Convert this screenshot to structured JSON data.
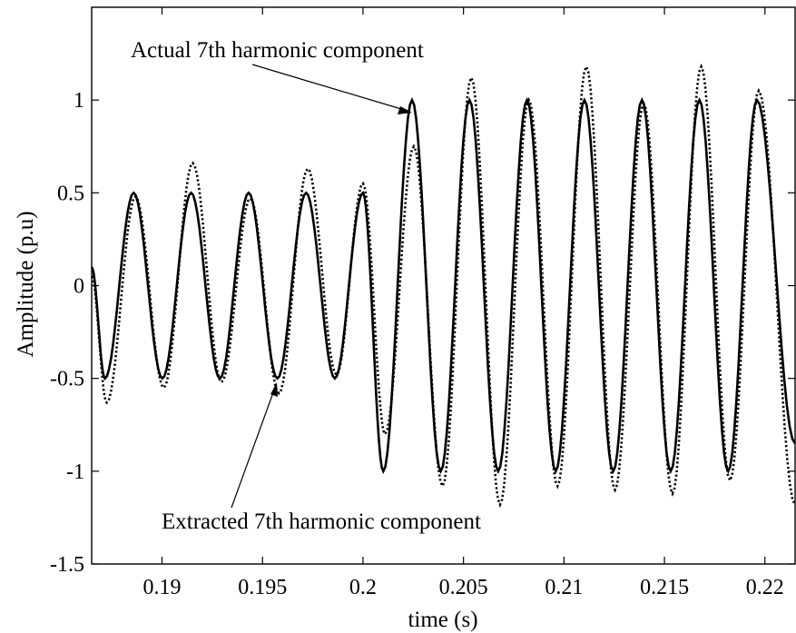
{
  "chart_data": {
    "type": "line",
    "title": "",
    "xlabel": "time (s)",
    "ylabel": "Amplitude (p.u)",
    "xlim": [
      0.1865,
      0.2215
    ],
    "ylim": [
      -1.5,
      1.5
    ],
    "grid": false,
    "x_tick_labels": [
      "0.19",
      "0.195",
      "0.2",
      "0.205",
      "0.21",
      "0.215",
      "0.22"
    ],
    "y_tick_labels": [
      "1",
      "0.5",
      "0",
      "-0.5",
      "-1",
      "-1.5"
    ],
    "series": [
      {
        "style": "solid",
        "x": [
          0.1865,
          0.18716,
          0.18859,
          0.19002,
          0.19145,
          0.19288,
          0.19431,
          0.19574,
          0.19717,
          0.1986,
          0.2,
          0.20101,
          0.20244,
          0.20387,
          0.2053,
          0.20673,
          0.20816,
          0.20959,
          0.21102,
          0.21245,
          0.21388,
          0.21531,
          0.21674,
          0.21817,
          0.2196,
          0.2215
        ],
        "y": [
          0.1,
          -0.5,
          0.5,
          -0.5,
          0.5,
          -0.5,
          0.5,
          -0.5,
          0.5,
          -0.5,
          0.5,
          -1.0,
          1.0,
          -1.0,
          1.0,
          -1.0,
          1.0,
          -1.0,
          1.0,
          -1.0,
          1.0,
          -1.0,
          1.0,
          -1.0,
          1.0,
          -0.85
        ]
      },
      {
        "style": "dotted",
        "x": [
          0.1865,
          0.18725,
          0.18868,
          0.19009,
          0.19153,
          0.19296,
          0.19439,
          0.19582,
          0.19725,
          0.19868,
          0.2,
          0.2011,
          0.20253,
          0.20396,
          0.20539,
          0.20682,
          0.20825,
          0.20968,
          0.21111,
          0.21254,
          0.21397,
          0.2154,
          0.21683,
          0.21826,
          0.21969,
          0.2215
        ],
        "y": [
          0.05,
          -0.63,
          0.48,
          -0.55,
          0.66,
          -0.52,
          0.47,
          -0.58,
          0.63,
          -0.48,
          0.55,
          -0.8,
          0.75,
          -1.08,
          1.12,
          -1.18,
          1.0,
          -1.08,
          1.18,
          -1.1,
          0.98,
          -1.12,
          1.18,
          -1.05,
          1.05,
          -1.18
        ]
      }
    ],
    "annotations": [
      {
        "text": "Actual 7th harmonic component"
      },
      {
        "text": "Extracted 7th harmonic component"
      }
    ]
  }
}
